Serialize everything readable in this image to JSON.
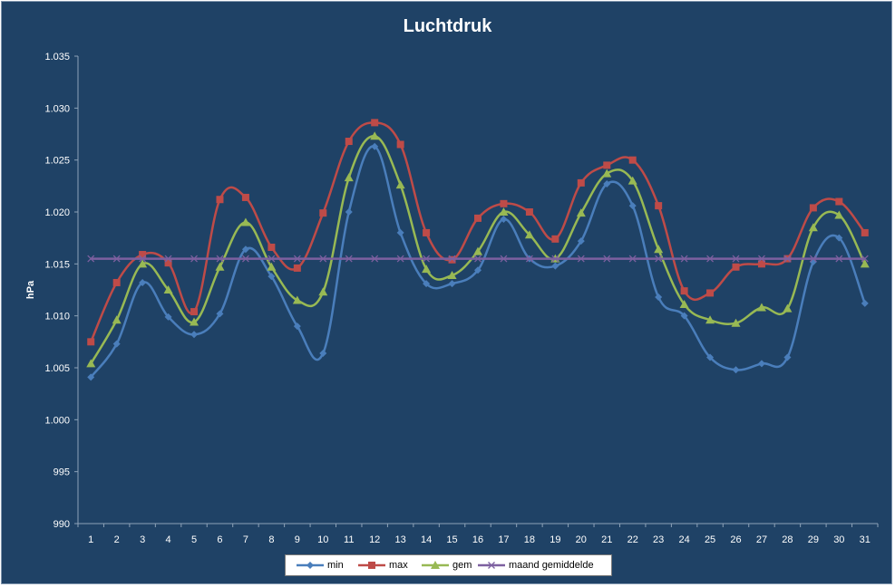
{
  "chart_data": {
    "type": "line",
    "title": "Luchtdruk",
    "xlabel": "",
    "ylabel": "hPa",
    "ylim": [
      990,
      1035
    ],
    "yticks": [
      990,
      995,
      1000,
      1005,
      1010,
      1015,
      1020,
      1025,
      1030,
      1035
    ],
    "ytick_labels": [
      "990",
      "995",
      "1.000",
      "1.005",
      "1.010",
      "1.015",
      "1.020",
      "1.025",
      "1.030",
      "1.035"
    ],
    "categories": [
      "1",
      "2",
      "3",
      "4",
      "5",
      "6",
      "7",
      "8",
      "9",
      "10",
      "11",
      "12",
      "13",
      "14",
      "15",
      "16",
      "17",
      "18",
      "19",
      "20",
      "21",
      "22",
      "23",
      "24",
      "25",
      "26",
      "27",
      "28",
      "29",
      "30",
      "31"
    ],
    "grid": false,
    "legend_position": "bottom",
    "series": [
      {
        "name": "min",
        "color": "#4a7ebb",
        "marker": "diamond",
        "values": [
          1004.1,
          1007.3,
          1013.2,
          1009.9,
          1008.2,
          1010.2,
          1016.4,
          1013.8,
          1009.0,
          1006.4,
          1020.0,
          1026.3,
          1018.0,
          1013.1,
          1013.1,
          1014.4,
          1019.3,
          1015.5,
          1014.8,
          1017.2,
          1022.7,
          1020.6,
          1011.8,
          1010.0,
          1006.0,
          1004.8,
          1005.4,
          1006.0,
          1015.2,
          1017.5,
          1011.2
        ]
      },
      {
        "name": "max",
        "color": "#be4b48",
        "marker": "square",
        "values": [
          1007.5,
          1013.2,
          1015.9,
          1015.1,
          1010.4,
          1021.2,
          1021.4,
          1016.6,
          1014.6,
          1019.9,
          1026.8,
          1028.6,
          1026.5,
          1018.0,
          1015.4,
          1019.4,
          1020.8,
          1020.0,
          1017.4,
          1022.8,
          1024.5,
          1025.0,
          1020.6,
          1012.4,
          1012.2,
          1014.7,
          1015.0,
          1015.5,
          1020.4,
          1021.0,
          1018.0
        ]
      },
      {
        "name": "gem",
        "color": "#98b954",
        "marker": "triangle",
        "values": [
          1005.4,
          1009.6,
          1015.0,
          1012.5,
          1009.4,
          1014.7,
          1019.0,
          1014.7,
          1011.5,
          1012.3,
          1023.3,
          1027.3,
          1022.6,
          1014.5,
          1013.9,
          1016.2,
          1020.0,
          1017.8,
          1015.5,
          1019.9,
          1023.7,
          1023.0,
          1016.4,
          1011.1,
          1009.6,
          1009.3,
          1010.8,
          1010.7,
          1018.5,
          1019.7,
          1015.0
        ]
      },
      {
        "name": "maand gemiddelde",
        "color": "#7d60a0",
        "marker": "x",
        "values": [
          1015.5,
          1015.5,
          1015.5,
          1015.5,
          1015.5,
          1015.5,
          1015.5,
          1015.5,
          1015.5,
          1015.5,
          1015.5,
          1015.5,
          1015.5,
          1015.5,
          1015.5,
          1015.5,
          1015.5,
          1015.5,
          1015.5,
          1015.5,
          1015.5,
          1015.5,
          1015.5,
          1015.5,
          1015.5,
          1015.5,
          1015.5,
          1015.5,
          1015.5,
          1015.5,
          1015.5
        ]
      }
    ]
  }
}
